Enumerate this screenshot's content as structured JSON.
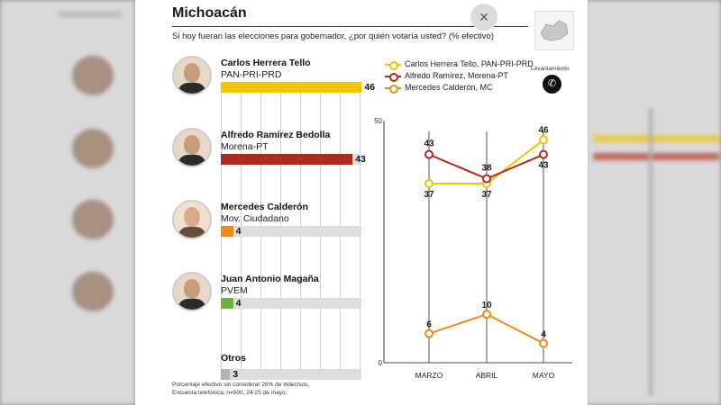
{
  "header": {
    "title": "Michoacán",
    "subtitle": "Si hoy fueran las elecciones para gobernador, ¿por quién votaría usted? (% efectivo)",
    "close_symbol": "×",
    "survey_label": "Levantamiento",
    "phone_symbol": "✆"
  },
  "candidates": [
    {
      "name": "Carlos Herrera Tello",
      "party": "PAN-PRI-PRD",
      "value": 46,
      "color": "#f2c500"
    },
    {
      "name": "Alfredo Ramírez Bedolla",
      "party": "Morena-PT",
      "value": 43,
      "color": "#b22a1e"
    },
    {
      "name": "Mercedes Calderón",
      "party": "Mov. Ciudadano",
      "value": 4,
      "color": "#f08a1c"
    },
    {
      "name": "Juan Antonio Magaña",
      "party": "PVEM",
      "value": 4,
      "color": "#6cb33f"
    },
    {
      "name": "Otros",
      "party": "",
      "value": 3,
      "color": "#b3b3b3"
    }
  ],
  "notes": {
    "line1": "Porcentaje efectivo sin considerar 26% de indecisos.",
    "line2": "Encuesta telefónica, n=500, 24-25 de mayo."
  },
  "chart_data": {
    "type": "line",
    "x": [
      "MARZO",
      "ABRIL",
      "MAYO"
    ],
    "ylim": [
      0,
      50
    ],
    "y_ticks": [
      0,
      50
    ],
    "series": [
      {
        "name": "Carlos Herrera Tello, PAN-PRI-PRD",
        "values": [
          37,
          37,
          46
        ],
        "color": "#f2c500"
      },
      {
        "name": "Alfredo Ramírez, Morena-PT",
        "values": [
          43,
          38,
          43
        ],
        "color": "#b22a1e"
      },
      {
        "name": "Mercedes Calderón, MC",
        "values": [
          6,
          10,
          4
        ],
        "color": "#f08a1c"
      }
    ]
  }
}
